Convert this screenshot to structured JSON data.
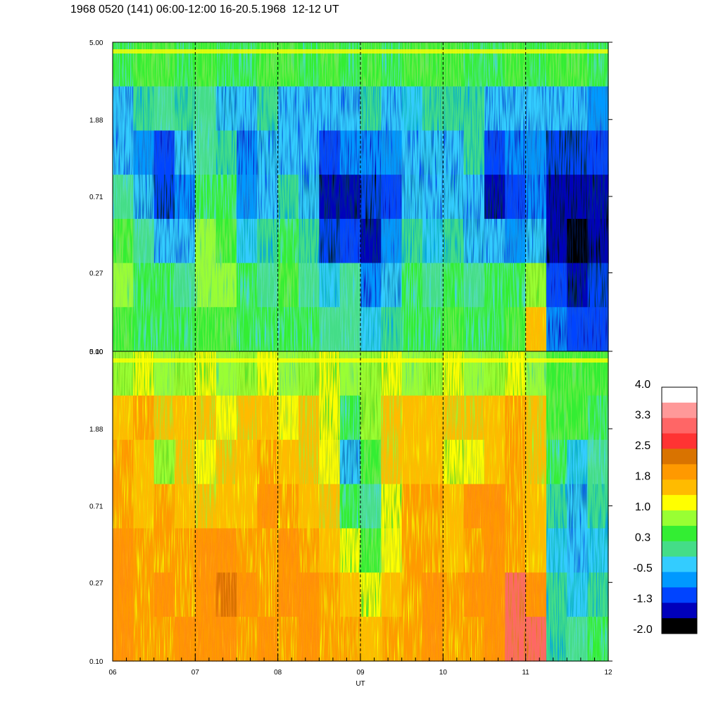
{
  "title": "1968 0520 (141) 06:00-12:00 16-20.5.1968  12-12 UT",
  "chart_data": {
    "type": "heatmap",
    "title": "1968 0520 (141) 06:00-12:00 16-20.5.1968  12-12 UT",
    "xlabel": "UT",
    "x_ticks": [
      "06",
      "07",
      "08",
      "09",
      "10",
      "11",
      "12"
    ],
    "xlim": [
      6,
      12
    ],
    "panels": [
      {
        "name": "upper",
        "y_ticks": [
          "5.00",
          "1.88",
          "0.71",
          "0.27",
          "0.10"
        ],
        "ylim": [
          0.1,
          5.0
        ],
        "y_scale": "log",
        "cell_values": [
          [
            0.3,
            0.6,
            0.6,
            0.3,
            0.6,
            0.3,
            0.3,
            0.6,
            0.6,
            0.3,
            0.6,
            0.3,
            0.6,
            0.3,
            0.6,
            0.6,
            0.6,
            0.3,
            0.3,
            0.6,
            0.3,
            0.6,
            0.6,
            0.3
          ],
          [
            -0.5,
            -0.1,
            0.1,
            0.0,
            0.1,
            -0.3,
            -0.4,
            -0.1,
            -0.4,
            -0.5,
            -0.5,
            -0.4,
            -0.1,
            -0.4,
            -0.2,
            -0.1,
            0.0,
            -0.1,
            -0.4,
            -0.4,
            -0.5,
            -0.4,
            -0.5,
            -0.6
          ],
          [
            -0.4,
            -0.6,
            -1.0,
            -0.3,
            0.1,
            -0.1,
            -0.7,
            -0.3,
            -0.4,
            -0.5,
            -0.9,
            -0.7,
            -0.8,
            -0.6,
            -0.4,
            -0.3,
            -0.4,
            -0.1,
            -1.0,
            -0.7,
            -0.6,
            -1.2,
            -1.1,
            -1.0
          ],
          [
            0.2,
            -0.3,
            -1.2,
            -0.8,
            0.4,
            0.3,
            -0.6,
            -0.5,
            0.0,
            -0.3,
            -1.3,
            -1.4,
            -1.2,
            -0.9,
            -0.3,
            -0.4,
            -0.3,
            -0.4,
            -1.3,
            -1.0,
            -0.8,
            -1.5,
            -1.6,
            -1.4
          ],
          [
            0.6,
            0.1,
            -0.4,
            -0.5,
            0.7,
            0.6,
            -0.2,
            -0.1,
            0.3,
            -0.1,
            -1.2,
            -0.9,
            -1.3,
            -0.6,
            0.0,
            -0.2,
            -0.1,
            -0.3,
            -0.5,
            -0.6,
            -0.3,
            -1.6,
            -1.7,
            -1.5
          ],
          [
            0.8,
            0.4,
            0.3,
            0.2,
            0.8,
            0.7,
            0.3,
            0.2,
            0.5,
            0.2,
            -0.2,
            0.1,
            -0.7,
            -0.3,
            0.4,
            0.2,
            0.3,
            0.1,
            0.3,
            0.4,
            0.9,
            -1.0,
            -1.3,
            -1.2
          ],
          [
            0.6,
            0.4,
            0.3,
            0.3,
            0.6,
            0.5,
            0.4,
            0.3,
            0.4,
            0.3,
            0.1,
            0.1,
            -0.2,
            0.0,
            0.3,
            0.4,
            0.5,
            0.3,
            0.4,
            0.6,
            1.7,
            -0.8,
            -1.0,
            -0.9
          ]
        ]
      },
      {
        "name": "lower",
        "y_ticks": [
          "5.00",
          "1.88",
          "0.71",
          "0.27",
          "0.10"
        ],
        "ylim": [
          0.1,
          5.0
        ],
        "y_scale": "log",
        "cell_values": [
          [
            0.9,
            1.0,
            0.8,
            0.9,
            1.0,
            0.8,
            0.9,
            1.0,
            0.8,
            0.9,
            1.0,
            0.8,
            0.9,
            1.0,
            0.8,
            0.9,
            1.0,
            0.8,
            0.9,
            1.0,
            0.8,
            0.6,
            0.5,
            0.6
          ],
          [
            1.6,
            1.8,
            1.5,
            1.7,
            1.4,
            1.3,
            1.5,
            1.7,
            1.3,
            1.5,
            1.2,
            0.4,
            0.9,
            1.5,
            1.6,
            1.7,
            1.4,
            1.5,
            1.6,
            1.8,
            1.4,
            0.6,
            0.5,
            0.3
          ],
          [
            1.8,
            1.6,
            0.9,
            1.5,
            1.3,
            1.4,
            1.6,
            1.8,
            1.6,
            1.5,
            1.3,
            -0.3,
            0.5,
            1.4,
            1.7,
            1.6,
            1.2,
            1.3,
            1.7,
            1.8,
            1.5,
            0.3,
            -0.2,
            0.1
          ],
          [
            1.9,
            1.7,
            1.8,
            1.6,
            1.5,
            1.6,
            1.7,
            2.0,
            1.9,
            1.6,
            1.4,
            0.4,
            0.2,
            1.2,
            1.8,
            1.9,
            1.6,
            2.0,
            2.1,
            1.9,
            1.6,
            0.0,
            -0.3,
            -0.1
          ],
          [
            2.0,
            1.9,
            1.9,
            1.8,
            2.0,
            2.1,
            1.9,
            1.9,
            2.0,
            1.8,
            1.6,
            1.0,
            0.5,
            1.3,
            1.8,
            1.9,
            1.7,
            1.9,
            2.0,
            1.8,
            1.7,
            -0.2,
            -0.4,
            -0.2
          ],
          [
            2.1,
            1.9,
            2.0,
            1.9,
            2.1,
            2.2,
            2.0,
            1.9,
            2.1,
            2.0,
            1.8,
            1.6,
            1.2,
            1.6,
            1.9,
            2.0,
            1.8,
            2.0,
            2.1,
            2.9,
            2.0,
            -0.1,
            -0.2,
            0.0
          ],
          [
            2.0,
            1.9,
            1.9,
            2.0,
            2.0,
            2.1,
            1.9,
            2.0,
            1.9,
            2.0,
            1.9,
            1.8,
            1.6,
            1.8,
            1.9,
            2.0,
            1.9,
            1.9,
            2.0,
            2.9,
            2.9,
            0.0,
            0.1,
            0.3
          ]
        ]
      }
    ],
    "colorbar": {
      "labels": [
        "4.0",
        "3.3",
        "2.5",
        "1.8",
        "1.0",
        "0.3",
        "-0.5",
        "-1.3",
        "-2.0"
      ],
      "range": [
        -2.0,
        4.0
      ],
      "colors": [
        "#ffffff",
        "#ff9999",
        "#ff6666",
        "#ff3333",
        "#d97300",
        "#ff9900",
        "#ffbb00",
        "#ffff00",
        "#99ff33",
        "#33ee33",
        "#44dd88",
        "#33ccff",
        "#0099ff",
        "#0044ff",
        "#0000bb",
        "#000000"
      ]
    },
    "dashed_vlines_at": [
      7,
      8,
      9,
      10,
      11
    ],
    "grid": false,
    "legend": "colorbar-right"
  }
}
